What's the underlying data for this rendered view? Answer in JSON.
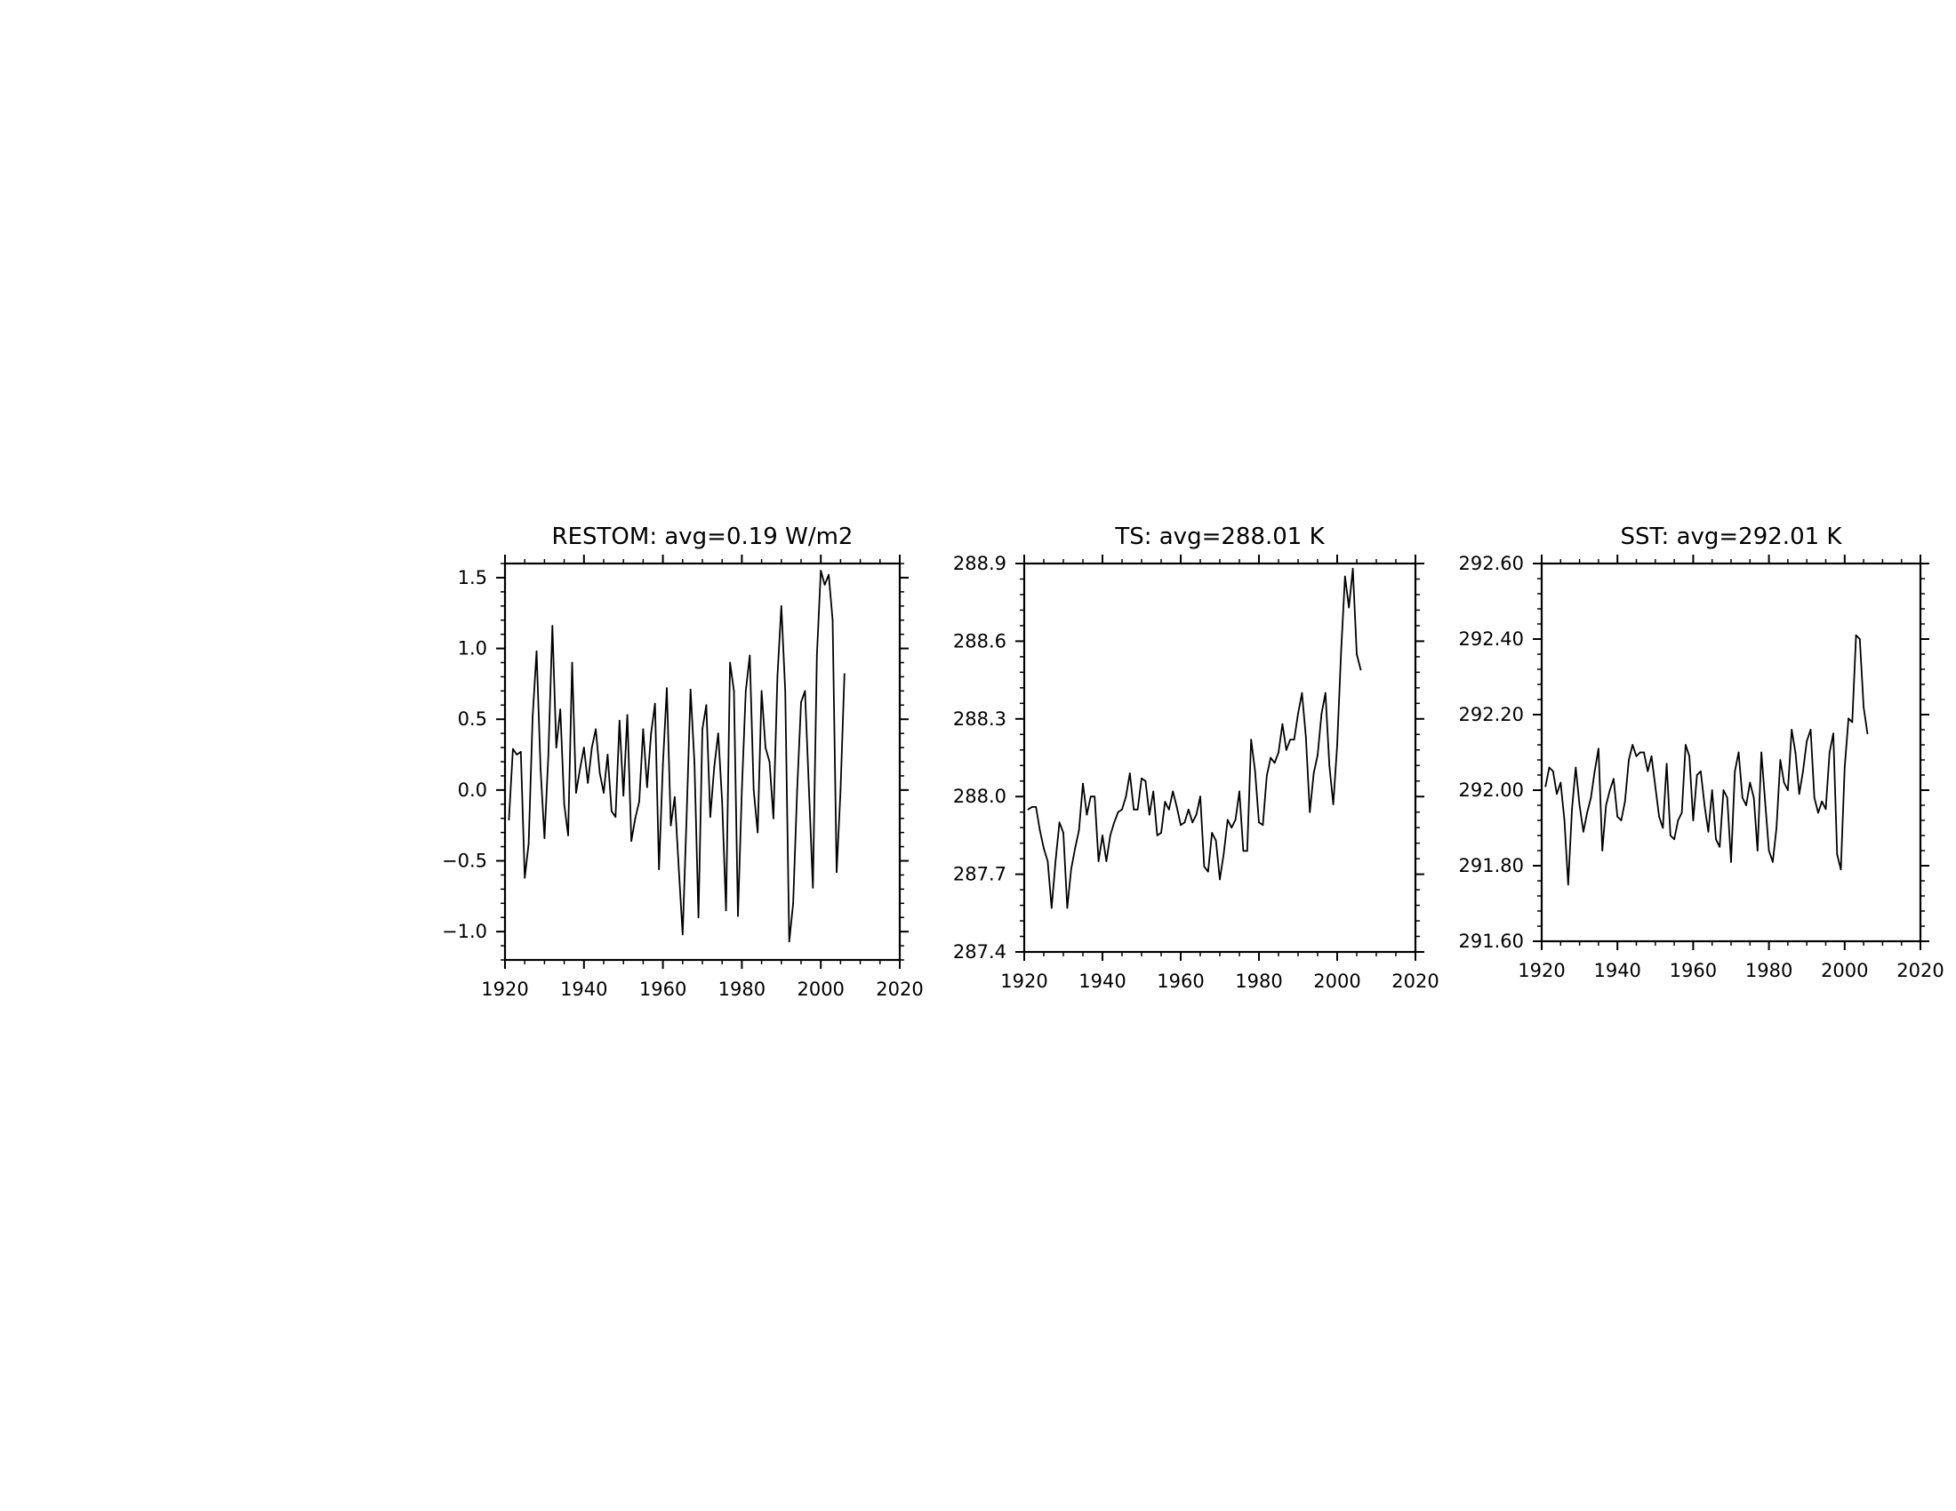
{
  "chart_data": [
    {
      "type": "line",
      "title": "RESTOM: avg=0.19 W/m2",
      "xlim": [
        1920,
        2020
      ],
      "ylim": [
        -1.2,
        1.6
      ],
      "x_ticks": [
        1920,
        1940,
        1960,
        1980,
        2000,
        2020
      ],
      "x_tick_labels": [
        "1920",
        "1940",
        "1960",
        "1980",
        "2000",
        "2020"
      ],
      "y_ticks": [
        -1.0,
        -0.5,
        0.0,
        0.5,
        1.0,
        1.5
      ],
      "y_tick_labels": [
        "−1.0",
        "−0.5",
        "0.0",
        "0.5",
        "1.0",
        "1.5"
      ],
      "grid": false,
      "series": [
        {
          "x_start": 1921,
          "values": [
            -0.21,
            0.29,
            0.25,
            0.27,
            -0.62,
            -0.38,
            0.52,
            0.98,
            0.15,
            -0.34,
            0.25,
            1.16,
            0.3,
            0.57,
            -0.1,
            -0.32,
            0.9,
            -0.02,
            0.15,
            0.3,
            0.05,
            0.3,
            0.43,
            0.12,
            -0.02,
            0.25,
            -0.15,
            -0.19,
            0.49,
            -0.04,
            0.53,
            -0.36,
            -0.2,
            -0.08,
            0.43,
            0.02,
            0.4,
            0.61,
            -0.56,
            0.18,
            0.72,
            -0.25,
            -0.05,
            -0.55,
            -1.02,
            -0.2,
            0.71,
            0.19,
            -0.9,
            0.43,
            0.6,
            -0.19,
            0.16,
            0.4,
            -0.08,
            -0.85,
            0.9,
            0.7,
            -0.89,
            0.0,
            0.7,
            0.95,
            0.0,
            -0.3,
            0.7,
            0.3,
            0.2,
            -0.2,
            0.8,
            1.3,
            0.7,
            -1.07,
            -0.8,
            0.0,
            0.62,
            0.7,
            0.0,
            -0.69,
            0.95,
            1.55,
            1.45,
            1.52,
            1.2,
            -0.58,
            0.0,
            0.82
          ]
        }
      ]
    },
    {
      "type": "line",
      "title": "TS: avg=288.01 K",
      "xlim": [
        1920,
        2020
      ],
      "ylim": [
        287.4,
        288.9
      ],
      "x_ticks": [
        1920,
        1940,
        1960,
        1980,
        2000,
        2020
      ],
      "x_tick_labels": [
        "1920",
        "1940",
        "1960",
        "1980",
        "2000",
        "2020"
      ],
      "y_ticks": [
        287.4,
        287.7,
        288.0,
        288.3,
        288.6,
        288.9
      ],
      "y_tick_labels": [
        "287.4",
        "287.7",
        "288.0",
        "288.3",
        "288.6",
        "288.9"
      ],
      "grid": false,
      "series": [
        {
          "x_start": 1921,
          "values": [
            287.95,
            287.96,
            287.96,
            287.87,
            287.8,
            287.75,
            287.57,
            287.75,
            287.9,
            287.86,
            287.57,
            287.72,
            287.8,
            287.87,
            288.05,
            287.93,
            288.0,
            288.0,
            287.75,
            287.85,
            287.75,
            287.85,
            287.9,
            287.94,
            287.95,
            288.0,
            288.09,
            287.95,
            287.95,
            288.07,
            288.06,
            287.93,
            288.02,
            287.85,
            287.86,
            287.98,
            287.95,
            288.02,
            287.96,
            287.89,
            287.9,
            287.95,
            287.9,
            287.93,
            288.0,
            287.73,
            287.71,
            287.86,
            287.83,
            287.68,
            287.78,
            287.91,
            287.88,
            287.91,
            288.02,
            287.79,
            287.79,
            288.22,
            288.1,
            287.9,
            287.89,
            288.08,
            288.15,
            288.13,
            288.17,
            288.28,
            288.18,
            288.22,
            288.22,
            288.32,
            288.4,
            288.23,
            287.94,
            288.09,
            288.16,
            288.32,
            288.4,
            288.12,
            287.97,
            288.2,
            288.56,
            288.85,
            288.73,
            288.88,
            288.55,
            288.49
          ]
        }
      ]
    },
    {
      "type": "line",
      "title": "SST: avg=292.01 K",
      "xlim": [
        1920,
        2020
      ],
      "ylim": [
        291.6,
        292.6
      ],
      "x_ticks": [
        1920,
        1940,
        1960,
        1980,
        2000,
        2020
      ],
      "x_tick_labels": [
        "1920",
        "1940",
        "1960",
        "1980",
        "2000",
        "2020"
      ],
      "y_ticks": [
        291.6,
        291.8,
        292.0,
        292.2,
        292.4,
        292.6
      ],
      "y_tick_labels": [
        "291.60",
        "291.80",
        "292.00",
        "292.20",
        "292.40",
        "292.60"
      ],
      "grid": false,
      "series": [
        {
          "x_start": 1921,
          "values": [
            292.01,
            292.06,
            292.05,
            291.99,
            292.02,
            291.92,
            291.75,
            291.95,
            292.06,
            291.96,
            291.89,
            291.94,
            291.98,
            292.05,
            292.11,
            291.84,
            291.96,
            292.0,
            292.03,
            291.93,
            291.92,
            291.97,
            292.08,
            292.12,
            292.09,
            292.1,
            292.1,
            292.05,
            292.09,
            292.01,
            291.93,
            291.9,
            292.07,
            291.88,
            291.87,
            291.92,
            291.94,
            292.12,
            292.09,
            291.92,
            292.04,
            292.05,
            291.96,
            291.89,
            292.0,
            291.87,
            291.85,
            292.0,
            291.98,
            291.81,
            292.05,
            292.1,
            291.98,
            291.96,
            292.02,
            291.98,
            291.84,
            292.1,
            291.97,
            291.84,
            291.81,
            291.9,
            292.08,
            292.02,
            292.0,
            292.16,
            292.1,
            291.99,
            292.05,
            292.13,
            292.16,
            291.98,
            291.94,
            291.97,
            291.95,
            292.1,
            292.15,
            291.83,
            291.79,
            292.06,
            292.19,
            292.18,
            292.41,
            292.4,
            292.22,
            292.15
          ]
        }
      ]
    }
  ]
}
